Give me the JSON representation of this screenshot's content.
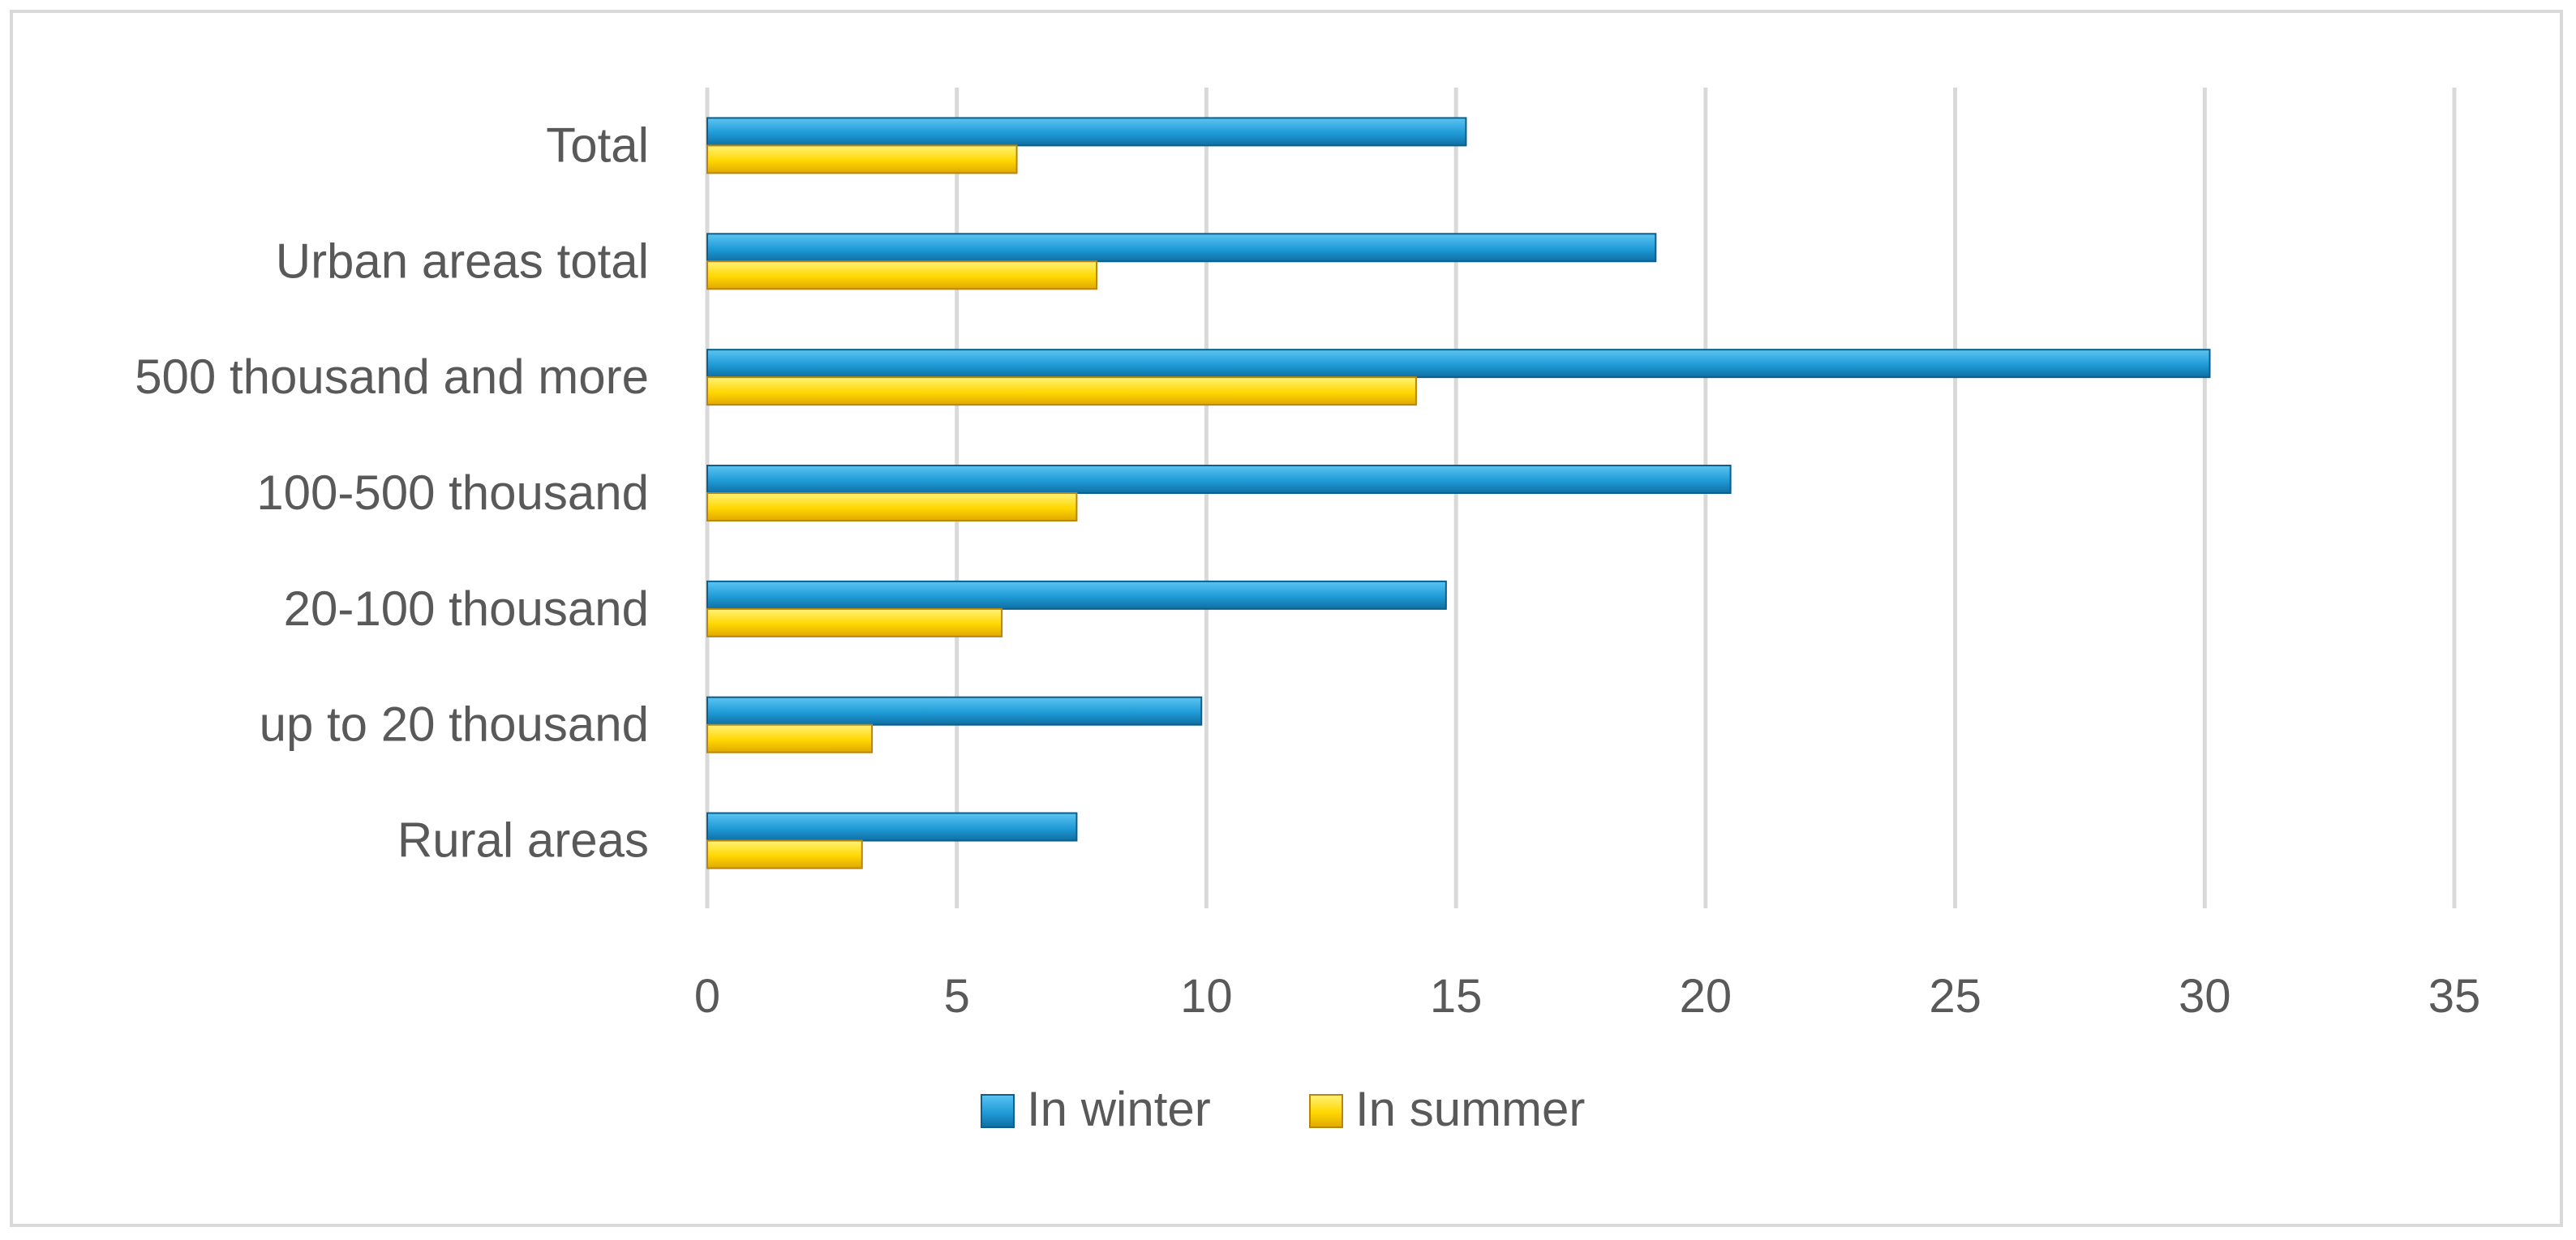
{
  "chart_data": {
    "type": "bar",
    "orientation": "horizontal",
    "categories": [
      "Total",
      "Urban areas total",
      "500 thousand and more",
      "100-500 thousand",
      "20-100 thousand",
      "up to 20 thousand",
      "Rural areas"
    ],
    "series": [
      {
        "name": "In winter",
        "values": [
          15.2,
          19.0,
          30.1,
          20.5,
          14.8,
          9.9,
          7.4
        ],
        "color": "#1f9bd7"
      },
      {
        "name": "In summer",
        "values": [
          6.2,
          7.8,
          14.2,
          7.4,
          5.9,
          3.3,
          3.1
        ],
        "color": "#ffd700"
      }
    ],
    "xlim": [
      0,
      35
    ],
    "xticks": [
      0,
      5,
      10,
      15,
      20,
      25,
      30,
      35
    ],
    "grid": "vertical",
    "legend": "bottom-center",
    "title": "",
    "xlabel": "",
    "ylabel": ""
  }
}
